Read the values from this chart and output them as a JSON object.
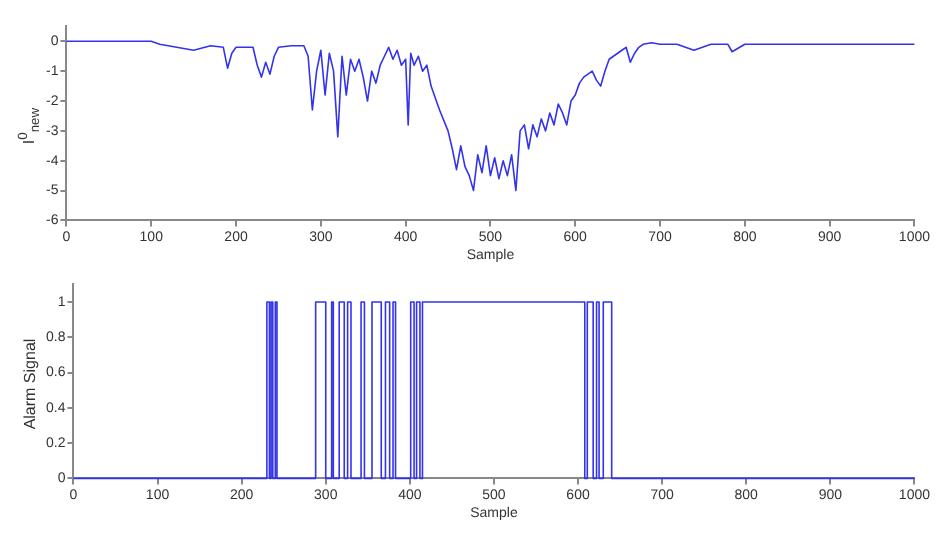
{
  "chart_data": [
    {
      "type": "line",
      "xlabel": "Sample",
      "ylabel": "I$^{0}$$_{new}$",
      "xlim": [
        0,
        1000
      ],
      "xticks": [
        0,
        100,
        200,
        300,
        400,
        500,
        600,
        700,
        800,
        900,
        1000
      ],
      "ylim": [
        -6,
        0.5
      ],
      "yticks": [
        -6,
        -5,
        -4,
        -3,
        -2,
        -1,
        0
      ],
      "grid": false,
      "legend": false,
      "marker": "none",
      "series": [
        {
          "color": "#3333ee",
          "x": [
            0,
            100,
            110,
            130,
            150,
            170,
            185,
            190,
            195,
            200,
            220,
            225,
            230,
            235,
            240,
            245,
            250,
            265,
            280,
            285,
            290,
            295,
            300,
            305,
            310,
            315,
            320,
            325,
            330,
            335,
            340,
            345,
            350,
            355,
            360,
            365,
            370,
            375,
            380,
            385,
            390,
            395,
            400,
            403,
            406,
            410,
            415,
            420,
            425,
            430,
            440,
            450,
            455,
            460,
            465,
            470,
            475,
            480,
            485,
            490,
            495,
            500,
            505,
            510,
            515,
            520,
            525,
            530,
            535,
            540,
            545,
            550,
            555,
            560,
            565,
            570,
            575,
            580,
            585,
            590,
            595,
            600,
            605,
            610,
            615,
            620,
            625,
            630,
            635,
            640,
            645,
            650,
            655,
            660,
            665,
            670,
            675,
            680,
            690,
            700,
            720,
            740,
            760,
            780,
            785,
            800,
            850,
            900,
            950,
            1000
          ],
          "values": [
            0,
            0,
            -0.1,
            -0.2,
            -0.3,
            -0.15,
            -0.2,
            -0.9,
            -0.4,
            -0.2,
            -0.2,
            -0.8,
            -1.2,
            -0.7,
            -1.1,
            -0.5,
            -0.2,
            -0.15,
            -0.15,
            -0.5,
            -2.3,
            -1.0,
            -0.3,
            -1.8,
            -0.4,
            -1.0,
            -3.2,
            -0.5,
            -1.8,
            -0.6,
            -1.0,
            -0.6,
            -1.2,
            -2.0,
            -1.0,
            -1.4,
            -0.8,
            -0.5,
            -0.2,
            -0.6,
            -0.3,
            -0.8,
            -0.6,
            -2.8,
            -0.4,
            -0.8,
            -0.5,
            -1.0,
            -0.8,
            -1.5,
            -2.3,
            -3.0,
            -3.6,
            -4.3,
            -3.5,
            -4.2,
            -4.5,
            -5.0,
            -3.8,
            -4.4,
            -3.5,
            -4.5,
            -3.9,
            -4.6,
            -4.0,
            -4.5,
            -3.8,
            -5.0,
            -3.0,
            -2.8,
            -3.6,
            -2.8,
            -3.2,
            -2.6,
            -3.0,
            -2.4,
            -2.8,
            -2.1,
            -2.4,
            -2.8,
            -2.0,
            -1.8,
            -1.4,
            -1.2,
            -1.1,
            -1.0,
            -1.3,
            -1.5,
            -1.0,
            -0.6,
            -0.5,
            -0.4,
            -0.3,
            -0.2,
            -0.7,
            -0.4,
            -0.2,
            -0.1,
            -0.05,
            -0.1,
            -0.1,
            -0.3,
            -0.1,
            -0.1,
            -0.35,
            -0.1,
            -0.1,
            -0.1,
            -0.1,
            -0.1
          ]
        }
      ]
    },
    {
      "type": "step",
      "xlabel": "Sample",
      "ylabel": "Alarm Signal",
      "xlim": [
        0,
        1000
      ],
      "xticks": [
        0,
        100,
        200,
        300,
        400,
        500,
        600,
        700,
        800,
        900,
        1000
      ],
      "ylim": [
        0,
        1.1
      ],
      "yticks": [
        0,
        0.2,
        0.4,
        0.6,
        0.8,
        1
      ],
      "grid": false,
      "legend": false,
      "marker": "none",
      "series": [
        {
          "color": "#3333ee",
          "x": [
            0,
            230,
            233,
            235,
            237,
            240,
            242,
            288,
            300,
            307,
            309,
            316,
            322,
            326,
            330,
            342,
            346,
            355,
            366,
            371,
            376,
            380,
            383,
            401,
            405,
            408,
            412,
            415,
            608,
            611,
            618,
            622,
            625,
            630,
            640,
            1000
          ],
          "values": [
            0,
            1,
            0,
            1,
            0,
            1,
            0,
            1,
            0,
            1,
            0,
            1,
            0,
            1,
            0,
            1,
            0,
            1,
            0,
            1,
            0,
            1,
            0,
            1,
            0,
            1,
            0,
            1,
            0,
            1,
            0,
            1,
            0,
            1,
            0,
            0
          ]
        }
      ]
    }
  ]
}
